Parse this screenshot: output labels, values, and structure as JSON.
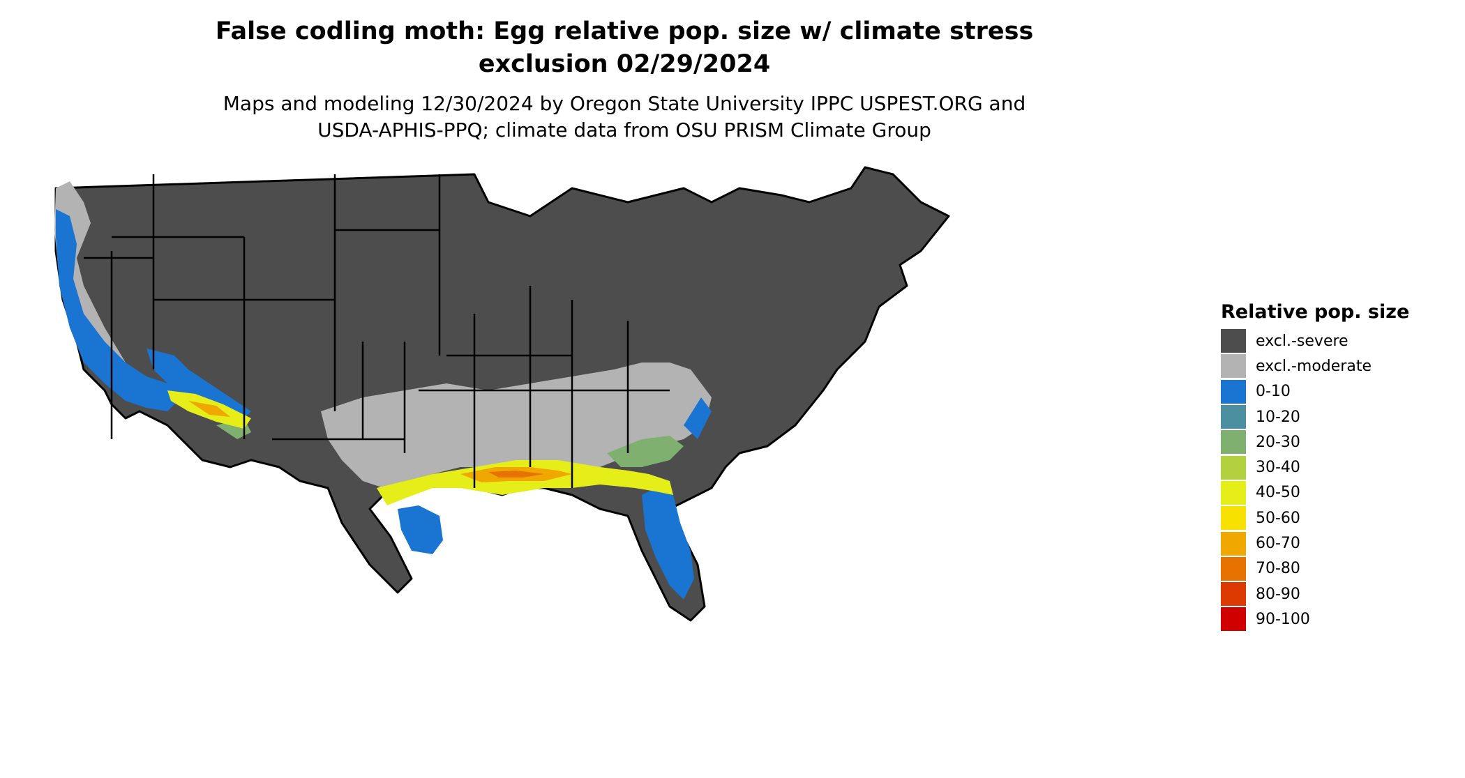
{
  "title_line1": "False codling moth: Egg relative pop. size w/ climate stress",
  "title_line2": "exclusion 02/29/2024",
  "subtitle_line1": "Maps and modeling 12/30/2024 by Oregon State University IPPC USPEST.ORG and",
  "subtitle_line2": "USDA-APHIS-PPQ; climate data from OSU PRISM Climate Group",
  "legend": {
    "title": "Relative pop. size",
    "items": [
      {
        "label": "excl.-severe",
        "color": "#4d4d4d"
      },
      {
        "label": "excl.-moderate",
        "color": "#b3b3b3"
      },
      {
        "label": "0-10",
        "color": "#1a75d2"
      },
      {
        "label": "10-20",
        "color": "#4b8fa0"
      },
      {
        "label": "20-30",
        "color": "#7fb06f"
      },
      {
        "label": "30-40",
        "color": "#b3d13f"
      },
      {
        "label": "40-50",
        "color": "#e6ee1a"
      },
      {
        "label": "50-60",
        "color": "#f7e100"
      },
      {
        "label": "60-70",
        "color": "#f0a800"
      },
      {
        "label": "70-80",
        "color": "#e87200"
      },
      {
        "label": "80-90",
        "color": "#dc3a00"
      },
      {
        "label": "90-100",
        "color": "#d00000"
      }
    ]
  }
}
